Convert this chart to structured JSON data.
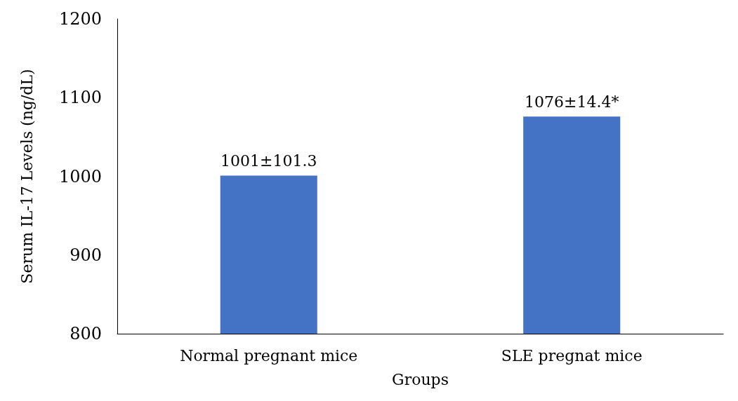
{
  "chart_data": {
    "type": "bar",
    "xlabel": "Groups",
    "ylabel": "Serum IL-17 Levels (ng/dL)",
    "categories": [
      "Normal pregnant mice",
      "SLE pregnat mice"
    ],
    "values": [
      1001,
      1076
    ],
    "color": "#4472c4",
    "value_labels": [
      "1001±101.3",
      "1076±14.4*"
    ],
    "ylim": [
      800,
      1200
    ],
    "yticks": [
      800,
      900,
      1000,
      1100,
      1200
    ],
    "grid": false
  }
}
